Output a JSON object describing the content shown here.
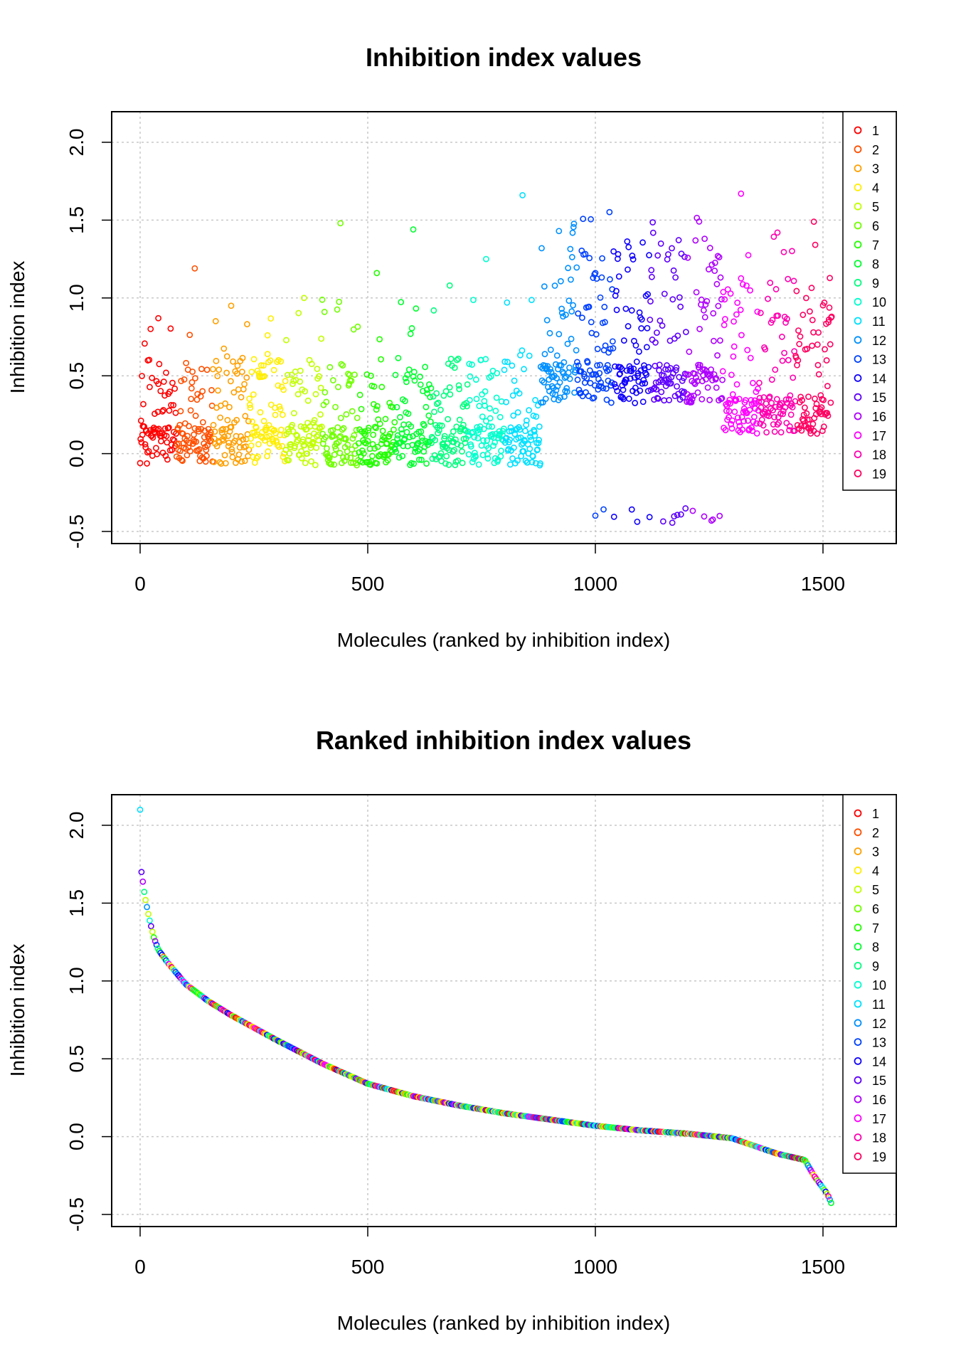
{
  "chart_data": [
    {
      "type": "scatter",
      "title": "Inhibition index values",
      "xlabel": "Molecules (ranked by inhibition index)",
      "ylabel": "Inhibition index",
      "xlim": [
        -50,
        1650
      ],
      "ylim": [
        -0.55,
        2.2
      ],
      "xticks": [
        0,
        500,
        1000,
        1500
      ],
      "yticks": [
        -0.5,
        0.0,
        0.5,
        1.0,
        1.5,
        2.0
      ],
      "xtick_labels": [
        "0",
        "500",
        "1000",
        "1500"
      ],
      "ytick_labels": [
        "-0.5",
        "0.0",
        "0.5",
        "1.0",
        "1.5",
        "2.0"
      ],
      "grid": true,
      "legend_position": "top-right",
      "legend": [
        "1",
        "2",
        "3",
        "4",
        "5",
        "6",
        "7",
        "8",
        "9",
        "10",
        "11",
        "12",
        "13",
        "14",
        "15",
        "16",
        "17",
        "18",
        "19"
      ],
      "series_colors": [
        "#FF0000",
        "#FF4F00",
        "#FF9F00",
        "#FFEE00",
        "#C1FF00",
        "#71FF00",
        "#22FF00",
        "#00FF2E",
        "#00FF7E",
        "#00FFCD",
        "#00E0FF",
        "#0090FF",
        "#0041FF",
        "#0F00FF",
        "#5E00FF",
        "#AE00FF",
        "#FF00FF",
        "#FF00AF",
        "#FF0060"
      ],
      "group_ranges": [
        [
          0,
          80
        ],
        [
          80,
          160
        ],
        [
          160,
          240
        ],
        [
          240,
          320
        ],
        [
          320,
          400
        ],
        [
          400,
          480
        ],
        [
          480,
          560
        ],
        [
          560,
          640
        ],
        [
          640,
          720
        ],
        [
          720,
          800
        ],
        [
          800,
          880
        ],
        [
          880,
          960
        ],
        [
          960,
          1040
        ],
        [
          1040,
          1120
        ],
        [
          1120,
          1200
        ],
        [
          1200,
          1280
        ],
        [
          1280,
          1360
        ],
        [
          1360,
          1440
        ],
        [
          1440,
          1520
        ]
      ],
      "n_points": 1520,
      "value_range": [
        -0.44,
        2.1
      ]
    },
    {
      "type": "scatter",
      "title": "Ranked inhibition index values",
      "xlabel": "Molecules (ranked by inhibition index)",
      "ylabel": "Inhibition index",
      "xlim": [
        -50,
        1650
      ],
      "ylim": [
        -0.55,
        2.2
      ],
      "xticks": [
        0,
        500,
        1000,
        1500
      ],
      "yticks": [
        -0.5,
        0.0,
        0.5,
        1.0,
        1.5,
        2.0
      ],
      "xtick_labels": [
        "0",
        "500",
        "1000",
        "1500"
      ],
      "ytick_labels": [
        "-0.5",
        "0.0",
        "0.5",
        "1.0",
        "1.5",
        "2.0"
      ],
      "grid": true,
      "legend_position": "top-right",
      "legend": [
        "1",
        "2",
        "3",
        "4",
        "5",
        "6",
        "7",
        "8",
        "9",
        "10",
        "11",
        "12",
        "13",
        "14",
        "15",
        "16",
        "17",
        "18",
        "19"
      ],
      "series_colors": [
        "#FF0000",
        "#FF4F00",
        "#FF9F00",
        "#FFEE00",
        "#C1FF00",
        "#71FF00",
        "#22FF00",
        "#00FF2E",
        "#00FF7E",
        "#00FFCD",
        "#00E0FF",
        "#0090FF",
        "#0041FF",
        "#0F00FF",
        "#5E00FF",
        "#AE00FF",
        "#FF00FF",
        "#FF00AF",
        "#FF0060"
      ],
      "curve": [
        [
          0,
          2.1
        ],
        [
          1,
          1.74
        ],
        [
          5,
          1.66
        ],
        [
          10,
          1.55
        ],
        [
          20,
          1.4
        ],
        [
          30,
          1.28
        ],
        [
          40,
          1.2
        ],
        [
          60,
          1.12
        ],
        [
          100,
          0.98
        ],
        [
          150,
          0.87
        ],
        [
          200,
          0.78
        ],
        [
          300,
          0.62
        ],
        [
          400,
          0.47
        ],
        [
          500,
          0.34
        ],
        [
          600,
          0.26
        ],
        [
          700,
          0.2
        ],
        [
          800,
          0.15
        ],
        [
          900,
          0.11
        ],
        [
          1000,
          0.07
        ],
        [
          1100,
          0.04
        ],
        [
          1200,
          0.02
        ],
        [
          1300,
          -0.01
        ],
        [
          1350,
          -0.06
        ],
        [
          1400,
          -0.11
        ],
        [
          1460,
          -0.15
        ],
        [
          1480,
          -0.25
        ],
        [
          1500,
          -0.33
        ],
        [
          1510,
          -0.37
        ],
        [
          1520,
          -0.44
        ]
      ],
      "n_points": 1520
    }
  ]
}
